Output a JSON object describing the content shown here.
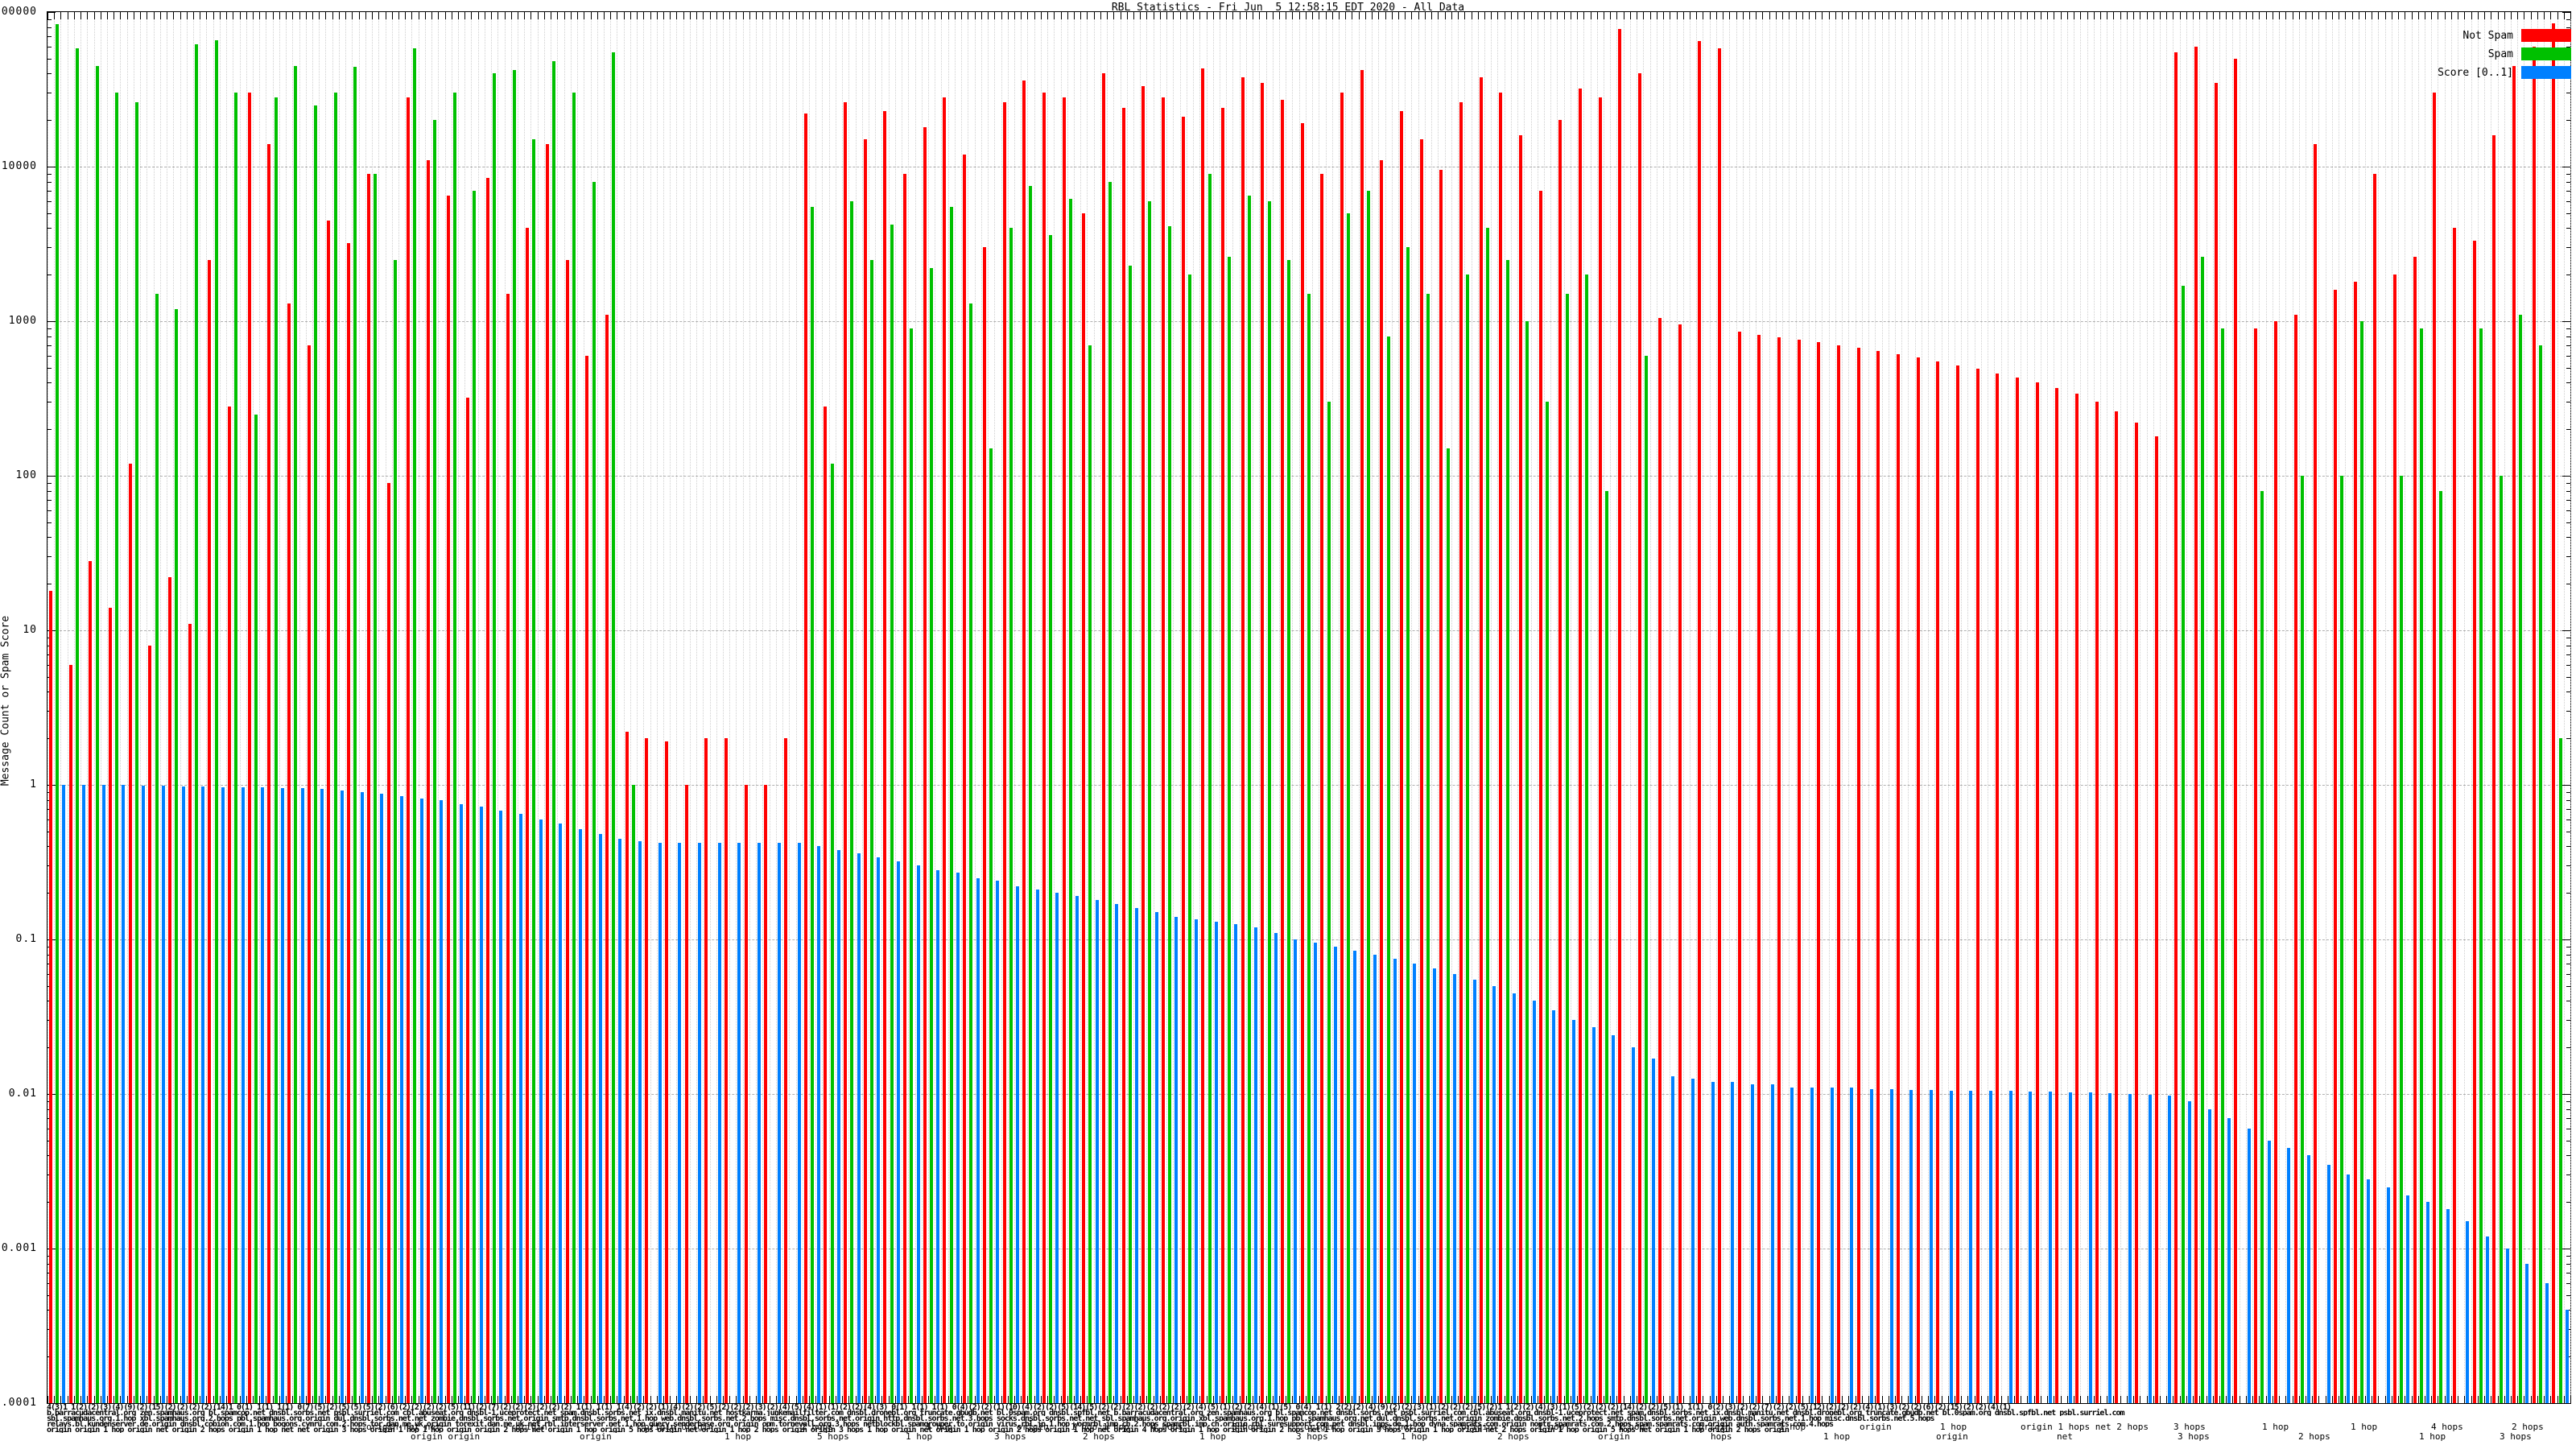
{
  "chart_data": {
    "type": "bar",
    "title": "RBL Statistics - Fri Jun  5 12:58:15 EDT 2020 - All Data",
    "ylabel": "Message Count or Spam Score",
    "yscale": "log",
    "ylim": [
      0.0001,
      100000
    ],
    "ytick_labels": [
      "100000",
      "10000",
      "1000",
      "100",
      "10",
      "1",
      "0.1",
      "0.01",
      "0.001",
      "0.0001"
    ],
    "grid": {
      "vertical": "dotted, one per bar slot",
      "horizontal": "dashed, one per decade"
    },
    "legend_position": "top-right",
    "x_count": 127,
    "series": [
      {
        "name": "Not Spam",
        "color": "#ff0000",
        "values": [
          18,
          6,
          28,
          14,
          120,
          8,
          22,
          11,
          2500,
          280,
          30000,
          14000,
          1300,
          700,
          4500,
          3200,
          9000,
          90,
          28000,
          11000,
          6500,
          320,
          8500,
          1500,
          4000,
          14000,
          2500,
          600,
          1100,
          2.2,
          2,
          1.9,
          1,
          2,
          2,
          1,
          1,
          2,
          22000,
          280,
          26000,
          15000,
          23000,
          9000,
          18000,
          28000,
          12000,
          3000,
          26000,
          36000,
          30000,
          28000,
          5000,
          40000,
          24000,
          33000,
          28000,
          21000,
          43000,
          24000,
          38000,
          35000,
          27000,
          19000,
          9000,
          30000,
          42000,
          11000,
          23000,
          15000,
          9500,
          26000,
          38000,
          30000,
          16000,
          7000,
          20000,
          32000,
          28000,
          78000,
          40000,
          1050,
          950,
          65000,
          58000,
          860,
          820,
          790,
          760,
          730,
          700,
          670,
          640,
          610,
          580,
          550,
          520,
          490,
          460,
          430,
          400,
          370,
          340,
          300,
          260,
          220,
          180,
          55000,
          60000,
          35000,
          50000,
          900,
          1000,
          1100,
          14000,
          1600,
          1800,
          9000,
          2000,
          2600,
          30000,
          4000,
          3300,
          16000,
          45000,
          60000,
          85000
        ]
      },
      {
        "name": "Spam",
        "color": "#00c000",
        "values": [
          84000,
          58000,
          45000,
          30000,
          26000,
          1500,
          1200,
          62000,
          66000,
          30000,
          250,
          28000,
          45000,
          25000,
          30000,
          44000,
          9000,
          2500,
          58000,
          20000,
          30000,
          7000,
          40000,
          42000,
          15000,
          48000,
          30000,
          8000,
          55000,
          1,
          0,
          0,
          0,
          0,
          0,
          0,
          0,
          0,
          5500,
          120,
          6000,
          2500,
          4200,
          900,
          2200,
          5500,
          1300,
          150,
          4000,
          7500,
          3600,
          6200,
          700,
          8000,
          2300,
          6000,
          4100,
          2000,
          9000,
          2600,
          6500,
          6000,
          2500,
          1500,
          300,
          5000,
          7000,
          800,
          3000,
          1500,
          150,
          2000,
          4000,
          2500,
          1000,
          300,
          1500,
          2000,
          80,
          0,
          600,
          0,
          0,
          0,
          0,
          0,
          0,
          0,
          0,
          0,
          0,
          0,
          0,
          0,
          0,
          0,
          0,
          0,
          0,
          0,
          0,
          0,
          0,
          0,
          0,
          0,
          0,
          1700,
          2600,
          900,
          0,
          80,
          0,
          100,
          0,
          100,
          1000,
          0,
          100,
          900,
          80,
          0,
          900,
          100,
          1100,
          700,
          2
        ]
      },
      {
        "name": "Score [0..1]",
        "color": "#0080ff",
        "values": [
          1,
          1,
          1,
          1,
          0.99,
          0.99,
          0.98,
          0.98,
          0.97,
          0.97,
          0.96,
          0.95,
          0.95,
          0.94,
          0.92,
          0.9,
          0.88,
          0.85,
          0.82,
          0.8,
          0.75,
          0.72,
          0.68,
          0.65,
          0.6,
          0.56,
          0.52,
          0.48,
          0.45,
          0.43,
          0.42,
          0.42,
          0.42,
          0.42,
          0.42,
          0.42,
          0.42,
          0.42,
          0.4,
          0.38,
          0.36,
          0.34,
          0.32,
          0.3,
          0.28,
          0.27,
          0.25,
          0.24,
          0.22,
          0.21,
          0.2,
          0.19,
          0.18,
          0.17,
          0.16,
          0.15,
          0.14,
          0.135,
          0.13,
          0.125,
          0.12,
          0.11,
          0.1,
          0.095,
          0.09,
          0.085,
          0.08,
          0.075,
          0.07,
          0.065,
          0.06,
          0.055,
          0.05,
          0.045,
          0.04,
          0.035,
          0.03,
          0.027,
          0.024,
          0.02,
          0.017,
          0.013,
          0.0125,
          0.012,
          0.012,
          0.0115,
          0.0115,
          0.011,
          0.011,
          0.011,
          0.011,
          0.0108,
          0.0108,
          0.0106,
          0.0106,
          0.0105,
          0.0105,
          0.0105,
          0.0105,
          0.0104,
          0.0104,
          0.0103,
          0.0102,
          0.0101,
          0.01,
          0.0099,
          0.0098,
          0.009,
          0.008,
          0.007,
          0.006,
          0.005,
          0.0045,
          0.004,
          0.0035,
          0.003,
          0.0028,
          0.0025,
          0.0022,
          0.002,
          0.0018,
          0.0015,
          0.0012,
          0.001,
          0.0008,
          0.0006,
          0.0004
        ]
      }
    ]
  },
  "legend": {
    "items": [
      {
        "label": "Not Spam",
        "color": "#ff0000"
      },
      {
        "label": "Spam",
        "color": "#00c000"
      },
      {
        "label": "Score [0..1]",
        "color": "#0080ff"
      }
    ]
  },
  "x_axis": {
    "note": "Hundreds of RBL host / qualifier labels overlap into an illegible smear below the axis; only fragments are readable.",
    "smear_rows": [
      "4(3)1 1(2)(2)(3)(4)(9)(2)(15)(2)(2)(2)(2)(14)1 0(1) 1(1) 1(1) 0(7)(5)(2)(5)(5)(5)(2)(6)(2)(2)(2)(2)(5)(11)(2)(7)(2)(2)(2)(2)(2)(2) 1(1) 1(1) 1(4)(2)(2)(1)(4)(2)(2)(5)(2)(2)(2)(3)(2)(4)(5)(4)(1)(1)(2)(2)(4)(3) 0(1) 1(1) 1(1) 0(4)(2)(2)(1)(10)(4)(2)(2)(5)(14)(5)(2)(2)(2)(2)(2)(2)(2)(2)(4)(5)(1)(2)(2)(4)(1)(5) 0(4) 1(1) 2(2)(2)(4)(9)(2)(2)(3)(1)(2)(2)(2)(5)(2)1 1(2)(2)(4)(3)(1)(5)(2)(2)(2)(14)(2)(2)(5)(1) 1(1) 0(2)(3)(2)(2)(7)(2)(2)(5)(12)(2)(2)(2)(4)(1)(3)(2)(2)(6)(2)(15)(2)(2)(4)(1)",
      "b.barracudacentral.org zen.spamhaus.org bl.spamcop.net dnsbl.sorbs.net psbl.surriel.com cbl.abuseat.org dnsbl-1.uceprotect.net spam.dnsbl.sorbs.net ix.dnsbl.manitu.net hostkarma.junkemailfilter.com dnsbl.dronebl.org truncate.gbudb.net bl.0spam.org dnsbl.spfbl.net b.barracudacentral.org zen.spamhaus.org bl.spamcop.net dnsbl.sorbs.net psbl.surriel.com cbl.abuseat.org dnsbl-1.uceprotect.net spam.dnsbl.sorbs.net ix.dnsbl.manitu.net dnsbl.dronebl.org truncate.gbudb.net bl.0spam.org dnsbl.spfbl.net psbl.surriel.com",
      "sbl.spamhaus.org.1.hop xbl.spamhaus.org.2.hops pbl.spamhaus.org.origin dul.dnsbl.sorbs.net.net zombie.dnsbl.sorbs.net.origin smtp.dnsbl.sorbs.net.1.hop web.dnsbl.sorbs.net.2.hops misc.dnsbl.sorbs.net.origin http.dnsbl.sorbs.net.3.hops socks.dnsbl.sorbs.net.net sbl.spamhaus.org.origin xbl.spamhaus.org.1.hop pbl.spamhaus.org.net dul.dnsbl.sorbs.net.origin zombie.dnsbl.sorbs.net.2.hops smtp.dnsbl.sorbs.net.origin web.dnsbl.sorbs.net.1.hop misc.dnsbl.sorbs.net.5.hops",
      "relays.bl.kundenserver.de.origin dnsbl.cobion.com.1.hop bogons.cymru.com.2.hops tor.dan.me.uk.origin torexit.dan.me.uk.net rbl.interserver.net.1.hop query.senderbase.org.origin opm.tornevall.org.3.hops netblockbl.spamgrouper.to.origin virus.rbl.jp.1.hop wormrbl.imp.ch.2.hops spamrbl.imp.ch.origin rbl.suresupport.com.net dnsbl.inps.de.1.hop dyna.spamrats.com.origin noptr.spamrats.com.2.hops spam.spamrats.com.origin auth.spamrats.com.4.hops",
      "origin origin 1 hop origin net origin 2 hops origin 1 hop net net origin 3 hops origin 1 hop 1 hop origin origin 2 hops net origin 1 hop origin 5 hops origin net origin 1 hop 2 hops origin origin 3 hops 1 hop origin net origin 1 hop origin 2 hops origin 1 hop net origin 4 hops origin 1 hop origin origin 2 hops net 1 hop origin 3 hops origin 1 hop origin net 2 hops origin 1 hop origin 5 hops net origin 1 hop origin 2 hops origin"
    ],
    "readable_labels": [
      {
        "x": 455,
        "row": 0,
        "text": "origin net net"
      },
      {
        "x": 640,
        "row": 0,
        "text": "origin"
      },
      {
        "x": 800,
        "row": 0,
        "text": "origin origin"
      },
      {
        "x": 995,
        "row": 0,
        "text": "2 hops"
      },
      {
        "x": 1150,
        "row": 0,
        "text": "1 hop"
      },
      {
        "x": 1263,
        "row": 0,
        "text": "origin"
      },
      {
        "x": 1330,
        "row": 0,
        "text": "1 hop 1 hop"
      },
      {
        "x": 1430,
        "row": 0,
        "text": "4 hops"
      },
      {
        "x": 1530,
        "row": 0,
        "text": "5 hops"
      },
      {
        "x": 1620,
        "row": 0,
        "text": "origin"
      },
      {
        "x": 1710,
        "row": 0,
        "text": "net net"
      },
      {
        "x": 1815,
        "row": 0,
        "text": "origin"
      },
      {
        "x": 1910,
        "row": 0,
        "text": "1 hop"
      },
      {
        "x": 2010,
        "row": 0,
        "text": "1 hop"
      },
      {
        "x": 2110,
        "row": 0,
        "text": "origin"
      },
      {
        "x": 2210,
        "row": 0,
        "text": "1 hop"
      },
      {
        "x": 2310,
        "row": 0,
        "text": "origin"
      },
      {
        "x": 2410,
        "row": 0,
        "text": "1 hop"
      },
      {
        "x": 2510,
        "row": 0,
        "text": "origin 1 hops net 2 hops"
      },
      {
        "x": 2700,
        "row": 0,
        "text": "3 hops"
      },
      {
        "x": 2810,
        "row": 0,
        "text": "1 hop"
      },
      {
        "x": 2920,
        "row": 0,
        "text": "1 hop"
      },
      {
        "x": 3020,
        "row": 0,
        "text": "4 hops"
      },
      {
        "x": 3120,
        "row": 0,
        "text": "2 hops"
      },
      {
        "x": 510,
        "row": 1,
        "text": "origin origin"
      },
      {
        "x": 720,
        "row": 1,
        "text": "origin"
      },
      {
        "x": 900,
        "row": 1,
        "text": "1 hop"
      },
      {
        "x": 1015,
        "row": 1,
        "text": "5 hops"
      },
      {
        "x": 1125,
        "row": 1,
        "text": "1 hop"
      },
      {
        "x": 1235,
        "row": 1,
        "text": "3 hops"
      },
      {
        "x": 1345,
        "row": 1,
        "text": "2 hops"
      },
      {
        "x": 1490,
        "row": 1,
        "text": "1 hop"
      },
      {
        "x": 1610,
        "row": 1,
        "text": "3 hops"
      },
      {
        "x": 1740,
        "row": 1,
        "text": "1 hop"
      },
      {
        "x": 1860,
        "row": 1,
        "text": "2 hops"
      },
      {
        "x": 1985,
        "row": 1,
        "text": "origin"
      },
      {
        "x": 2125,
        "row": 1,
        "text": "hops"
      },
      {
        "x": 2265,
        "row": 1,
        "text": "1 hop"
      },
      {
        "x": 2405,
        "row": 1,
        "text": "origin"
      },
      {
        "x": 2555,
        "row": 1,
        "text": "net"
      },
      {
        "x": 2705,
        "row": 1,
        "text": "3 hops"
      },
      {
        "x": 2855,
        "row": 1,
        "text": "2 hops"
      },
      {
        "x": 3005,
        "row": 1,
        "text": "1 hop"
      },
      {
        "x": 3105,
        "row": 1,
        "text": "3 hops"
      }
    ]
  }
}
